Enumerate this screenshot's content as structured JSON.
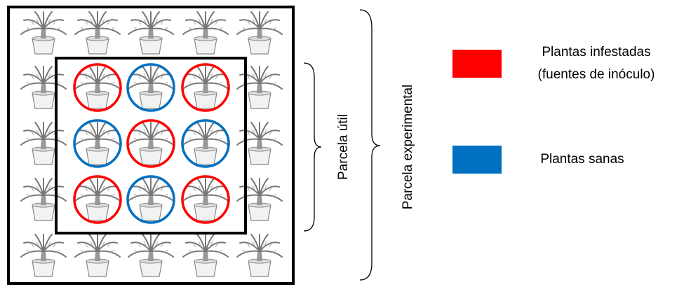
{
  "labels": {
    "useful_plot": "Parcela útil",
    "experimental_plot": "Parcela  experimental"
  },
  "legend": [
    {
      "lines": [
        "Plantas infestadas",
        "(fuentes de inóculo)"
      ],
      "color": "#ff0000"
    },
    {
      "lines": [
        "Plantas sanas"
      ],
      "color": "#0070c0"
    }
  ]
}
